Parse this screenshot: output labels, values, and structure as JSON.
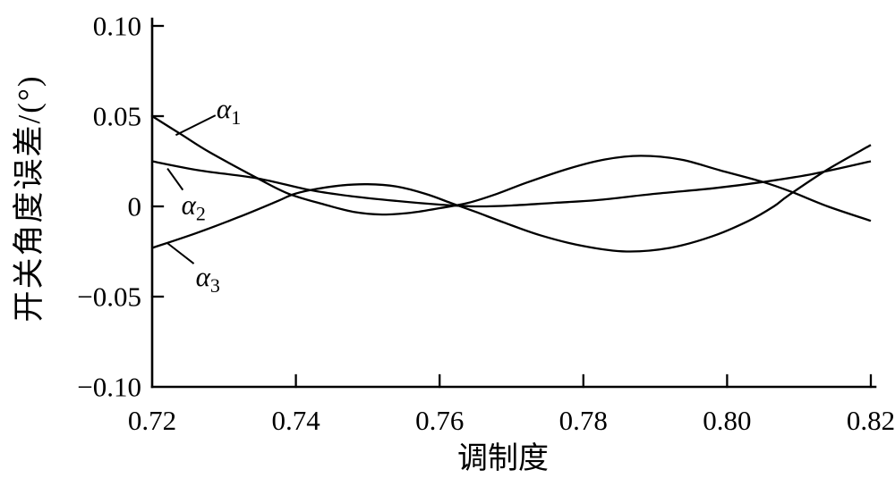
{
  "figure": {
    "background_color": "#ffffff",
    "ink_color": "#000000"
  },
  "chart_data": {
    "type": "line",
    "title": "",
    "xlabel": "调制度",
    "ylabel": "开关角度误差/(°)",
    "xlim": [
      0.72,
      0.82
    ],
    "ylim": [
      -0.1,
      0.1
    ],
    "grid": false,
    "legend": "inline-annotations",
    "line_color": "#000000",
    "x_ticks": [
      0.72,
      0.74,
      0.76,
      0.78,
      0.8,
      0.82
    ],
    "x_tick_labels": [
      "0.72",
      "0.74",
      "0.76",
      "0.78",
      "0.80",
      "0.82"
    ],
    "y_ticks": [
      0.1,
      0.05,
      0,
      -0.05,
      -0.1
    ],
    "y_tick_labels": [
      "0.10",
      "0.05",
      "0",
      "−0.05",
      "−0.10"
    ],
    "series": [
      {
        "name": "alpha-1",
        "label_base": "α",
        "label_sub": "1",
        "x": [
          0.72,
          0.724,
          0.728,
          0.7347,
          0.739,
          0.744,
          0.748,
          0.752,
          0.756,
          0.76,
          0.764,
          0.768,
          0.772,
          0.778,
          0.783,
          0.788,
          0.7935,
          0.799,
          0.805,
          0.809,
          0.814,
          0.82
        ],
        "y": [
          0.05,
          0.04,
          0.03,
          0.0155,
          0.007,
          0.001,
          -0.003,
          -0.0045,
          -0.0035,
          -0.001,
          0.002,
          0.007,
          0.013,
          0.021,
          0.026,
          0.028,
          0.026,
          0.02,
          0.0135,
          0.008,
          0.0,
          -0.008
        ],
        "annotation": {
          "label_x": 0.7307,
          "label_y": 0.054,
          "leader": [
            0.7234,
            0.0397,
            0.7287,
            0.0502
          ]
        }
      },
      {
        "name": "alpha-2",
        "label_base": "α",
        "label_sub": "2",
        "x": [
          0.72,
          0.7265,
          0.7347,
          0.742,
          0.748,
          0.754,
          0.76,
          0.765,
          0.77,
          0.776,
          0.782,
          0.79,
          0.798,
          0.805,
          0.812,
          0.82
        ],
        "y": [
          0.025,
          0.02,
          0.0155,
          0.009,
          0.0055,
          0.003,
          0.001,
          0.0,
          0.0005,
          0.002,
          0.0035,
          0.007,
          0.01,
          0.0135,
          0.018,
          0.025
        ],
        "annotation": {
          "label_x": 0.7258,
          "label_y": 0.0008,
          "leader": [
            0.7222,
            0.0206,
            0.7242,
            0.0095
          ]
        }
      },
      {
        "name": "alpha-3",
        "label_base": "α",
        "label_sub": "3",
        "x": [
          0.72,
          0.726,
          0.732,
          0.7375,
          0.7395,
          0.742,
          0.746,
          0.75,
          0.754,
          0.758,
          0.7615,
          0.765,
          0.769,
          0.774,
          0.78,
          0.786,
          0.792,
          0.798,
          0.803,
          0.8065,
          0.8085,
          0.814,
          0.82
        ],
        "y": [
          -0.023,
          -0.015,
          -0.006,
          0.003,
          0.0065,
          0.009,
          0.0115,
          0.0123,
          0.011,
          0.007,
          0.002,
          -0.003,
          -0.009,
          -0.016,
          -0.022,
          -0.025,
          -0.023,
          -0.0165,
          -0.008,
          0.0,
          0.006,
          0.0205,
          0.034
        ],
        "annotation": {
          "label_x": 0.7278,
          "label_y": -0.039,
          "leader": [
            0.7222,
            -0.0206,
            0.7257,
            -0.0314
          ]
        }
      }
    ]
  }
}
